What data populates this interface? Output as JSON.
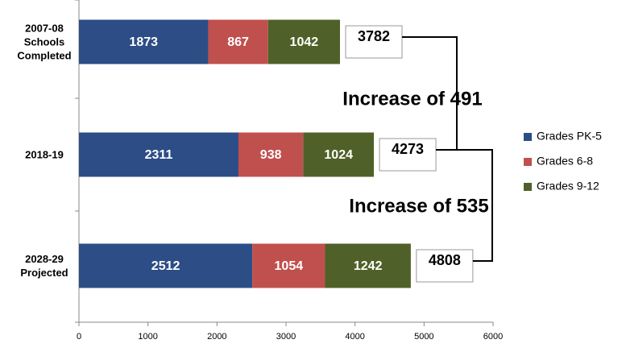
{
  "chart_data": {
    "type": "stacked-bar-horizontal",
    "categories": [
      "2007-08 Schools Completed",
      "2018-19",
      "2028-29 Projected"
    ],
    "series": [
      {
        "name": "Grades PK-5",
        "color": "#2c4d86",
        "values": [
          1873,
          2311,
          2512
        ]
      },
      {
        "name": "Grades 6-8",
        "color": "#c0504d",
        "values": [
          867,
          938,
          1054
        ]
      },
      {
        "name": "Grades 9-12",
        "color": "#4f6128",
        "values": [
          1042,
          1024,
          1242
        ]
      }
    ],
    "totals": [
      3782,
      4273,
      4808
    ],
    "annotations": [
      "Increase of 491",
      "Increase of 535"
    ],
    "xlim": [
      0,
      6000
    ],
    "xticks": [
      0,
      1000,
      2000,
      3000,
      4000,
      5000,
      6000
    ],
    "legend": "right"
  }
}
